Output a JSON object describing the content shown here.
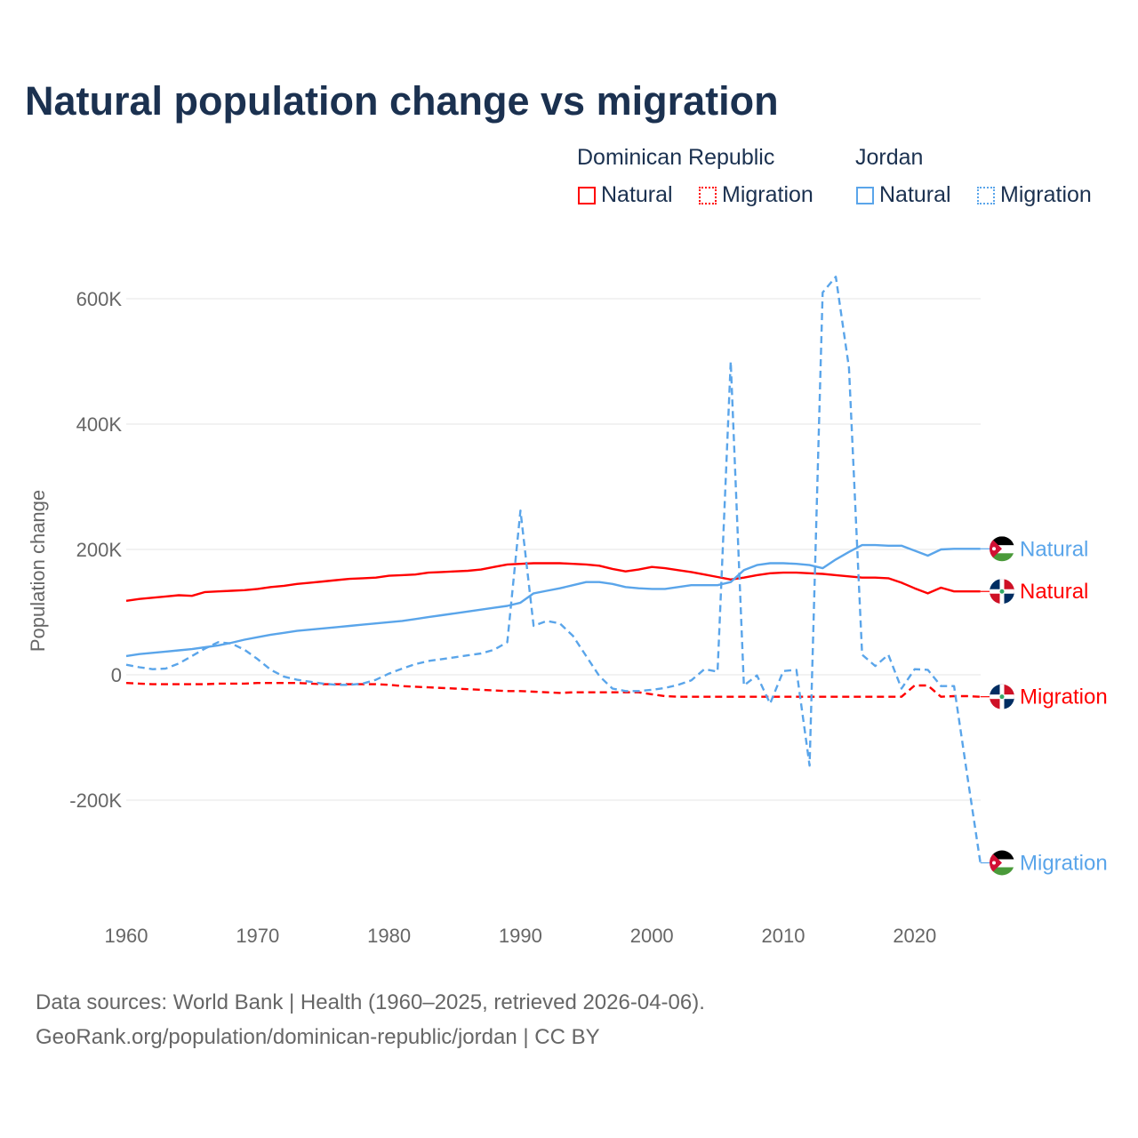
{
  "chart_data": {
    "type": "line",
    "title": "Natural population change vs migration",
    "ylabel": "Population change",
    "xlabel": "",
    "xlim": [
      1960,
      2025
    ],
    "ylim": [
      -330000,
      650000
    ],
    "yticks": [
      -200000,
      0,
      200000,
      400000,
      600000
    ],
    "ytick_labels": [
      "-200K",
      "0",
      "200K",
      "400K",
      "600K"
    ],
    "xticks": [
      1960,
      1970,
      1980,
      1990,
      2000,
      2010,
      2020
    ],
    "xtick_labels": [
      "1960",
      "1970",
      "1980",
      "1990",
      "2000",
      "2010",
      "2020"
    ],
    "grid": true,
    "legend_placement": "top-right",
    "legend_groups": [
      "Dominican Republic",
      "Jordan"
    ],
    "x_start": 1960,
    "series": [
      {
        "name": "Natural",
        "country": "Dominican Republic",
        "color": "#ff0000",
        "dash": false,
        "end_label": "Natural",
        "values": [
          118,
          121,
          123,
          125,
          127,
          126,
          132,
          133,
          134,
          135,
          137,
          140,
          142,
          145,
          147,
          149,
          151,
          153,
          154,
          155,
          158,
          159,
          160,
          163,
          164,
          165,
          166,
          168,
          172,
          176,
          177,
          178,
          178,
          178,
          177,
          176,
          174,
          169,
          165,
          168,
          172,
          170,
          167,
          164,
          160,
          156,
          152,
          155,
          159,
          162,
          163,
          163,
          162,
          161,
          159,
          157,
          155,
          155,
          154,
          147,
          138,
          130,
          139,
          133,
          133,
          133
        ]
      },
      {
        "name": "Migration",
        "country": "Dominican Republic",
        "color": "#ff0000",
        "dash": true,
        "end_label": "Migration",
        "values": [
          -13,
          -14,
          -15,
          -15,
          -15,
          -15,
          -15,
          -14,
          -14,
          -14,
          -13,
          -13,
          -13,
          -13,
          -14,
          -15,
          -15,
          -15,
          -15,
          -15,
          -16,
          -18,
          -19,
          -20,
          -21,
          -22,
          -23,
          -24,
          -25,
          -26,
          -26,
          -27,
          -28,
          -29,
          -28,
          -28,
          -28,
          -28,
          -28,
          -28,
          -31,
          -34,
          -35,
          -35,
          -35,
          -35,
          -35,
          -35,
          -35,
          -35,
          -35,
          -35,
          -35,
          -35,
          -35,
          -35,
          -35,
          -35,
          -35,
          -35,
          -17,
          -17,
          -35,
          -34,
          -34,
          -35
        ]
      },
      {
        "name": "Natural",
        "country": "Jordan",
        "color": "#5aa5ea",
        "dash": false,
        "end_label": "Natural",
        "values": [
          30,
          33,
          35,
          37,
          39,
          41,
          44,
          47,
          51,
          56,
          60,
          64,
          67,
          70,
          72,
          74,
          76,
          78,
          80,
          82,
          84,
          86,
          89,
          92,
          95,
          98,
          101,
          104,
          107,
          110,
          115,
          130,
          134,
          138,
          143,
          148,
          148,
          145,
          140,
          138,
          137,
          137,
          140,
          143,
          143,
          143,
          148,
          167,
          175,
          178,
          178,
          177,
          175,
          170,
          184,
          196,
          207,
          207,
          206,
          206,
          198,
          190,
          200,
          201,
          201,
          201
        ]
      },
      {
        "name": "Migration",
        "country": "Jordan",
        "color": "#5aa5ea",
        "dash": true,
        "end_label": "Migration",
        "values": [
          16,
          12,
          9,
          10,
          18,
          30,
          42,
          52,
          50,
          40,
          25,
          8,
          -3,
          -8,
          -11,
          -14,
          -16,
          -16,
          -14,
          -8,
          2,
          10,
          17,
          22,
          25,
          28,
          31,
          34,
          40,
          52,
          262,
          78,
          86,
          82,
          62,
          30,
          -2,
          -22,
          -26,
          -26,
          -24,
          -21,
          -16,
          -9,
          9,
          5,
          500,
          -17,
          -1,
          -46,
          6,
          8,
          -145,
          610,
          635,
          490,
          32,
          14,
          32,
          -22,
          9,
          8,
          -18,
          -18,
          -160,
          -300
        ]
      }
    ],
    "value_unit": "thousands"
  },
  "legend": {
    "group_1": "Dominican Republic",
    "group_2": "Jordan",
    "natural": "Natural",
    "migration": "Migration"
  },
  "footer": {
    "line1": "Data sources: World Bank | Health (1960–2025, retrieved 2026-04-06).",
    "line2": "GeoRank.org/population/dominican-republic/jordan | CC BY"
  }
}
